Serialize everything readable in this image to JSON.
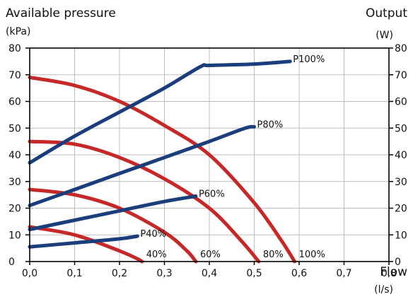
{
  "chart_data": {
    "type": "line",
    "title_left": "Available pressure",
    "unit_left": "(kPa)",
    "title_right": "Output",
    "unit_right": "(W)",
    "xlabel": "Flow",
    "xunit": "(l/s)",
    "xlim": [
      0,
      0.8
    ],
    "ylim": [
      0,
      80
    ],
    "x_ticks": [
      "0,0",
      "0,1",
      "0,2",
      "0,3",
      "0,4",
      "0,5",
      "0,6",
      "0,7",
      "0,8"
    ],
    "y_ticks_left": [
      "0",
      "10",
      "20",
      "30",
      "40",
      "50",
      "60",
      "70",
      "80"
    ],
    "y_ticks_right": [
      "0",
      "10",
      "20",
      "30",
      "40",
      "50",
      "60",
      "70",
      "80"
    ],
    "grid": true,
    "colors": {
      "pressure": "#c62828",
      "output": "#1a3d7c"
    },
    "pressure_series": [
      {
        "name": "100%",
        "x": [
          0.0,
          0.1,
          0.2,
          0.3,
          0.4,
          0.5,
          0.56,
          0.59
        ],
        "y": [
          69,
          66,
          60,
          51,
          40,
          22,
          8,
          0
        ]
      },
      {
        "name": "80%",
        "x": [
          0.0,
          0.1,
          0.2,
          0.3,
          0.4,
          0.47,
          0.51
        ],
        "y": [
          45,
          44,
          39,
          31,
          20,
          8,
          0
        ]
      },
      {
        "name": "60%",
        "x": [
          0.0,
          0.1,
          0.2,
          0.3,
          0.35,
          0.37
        ],
        "y": [
          27,
          25,
          20,
          11,
          4,
          0
        ]
      },
      {
        "name": "40%",
        "x": [
          0.0,
          0.1,
          0.2,
          0.24,
          0.25
        ],
        "y": [
          13,
          10,
          4,
          1,
          0
        ]
      }
    ],
    "output_series": [
      {
        "name": "P100%",
        "x": [
          0.0,
          0.1,
          0.2,
          0.3,
          0.38,
          0.4,
          0.5,
          0.58
        ],
        "y": [
          37,
          47,
          56,
          65,
          73,
          73.5,
          74,
          75
        ]
      },
      {
        "name": "P80%",
        "x": [
          0.0,
          0.1,
          0.2,
          0.3,
          0.4,
          0.48,
          0.5
        ],
        "y": [
          21,
          27,
          33,
          39,
          45,
          50,
          50.5
        ]
      },
      {
        "name": "P60%",
        "x": [
          0.0,
          0.1,
          0.2,
          0.3,
          0.37
        ],
        "y": [
          12,
          15.5,
          19,
          22.5,
          24.5
        ]
      },
      {
        "name": "P40%",
        "x": [
          0.0,
          0.1,
          0.2,
          0.24
        ],
        "y": [
          5.5,
          7,
          8.5,
          9.5
        ]
      }
    ]
  }
}
